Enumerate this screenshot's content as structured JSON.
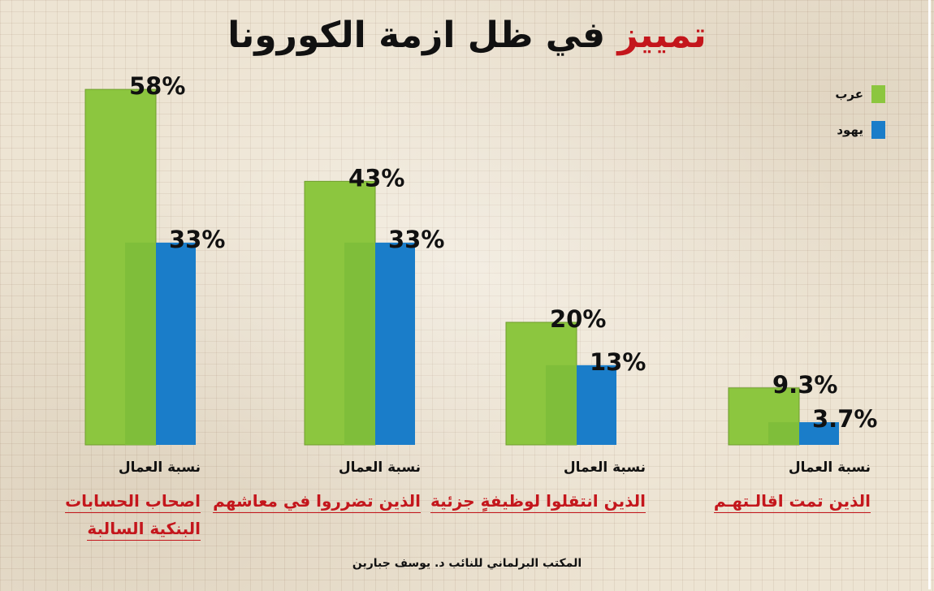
{
  "title": {
    "highlight": "تمييز",
    "rest": "في ظل ازمة الكورونا"
  },
  "legend": [
    {
      "label": "عرب",
      "color": "#8cc63f"
    },
    {
      "label": "يهود",
      "color": "#1a7dc9"
    }
  ],
  "chart_data": {
    "type": "bar",
    "categories": [
      "اصحاب الحسابات البنكية السالبة",
      "الذين تضرروا في معاشهم",
      "الذين انتقلوا لوظيفةٍ جزئية",
      "الذين تمت اقالـتهـم"
    ],
    "series": [
      {
        "name": "عرب",
        "values": [
          58,
          43,
          20,
          9.3
        ],
        "labels": [
          "58%",
          "43%",
          "20%",
          "9.3%"
        ],
        "color": "#8cc63f"
      },
      {
        "name": "يهود",
        "values": [
          33,
          33,
          13,
          3.7
        ],
        "labels": [
          "33%",
          "33%",
          "13%",
          "3.7%"
        ],
        "color": "#1a7dc9"
      }
    ],
    "ylim": [
      0,
      60
    ],
    "grid": false,
    "legend_position": "top-right"
  },
  "captions": [
    {
      "top": "نسبة العمال",
      "lines": [
        "اصحاب الحسابات",
        "البنكية السالبة"
      ]
    },
    {
      "top": "نسبة العمال",
      "lines": [
        "الذين تضرروا في معاشهم"
      ]
    },
    {
      "top": "نسبة العمال",
      "lines": [
        "الذين انتقلوا لوظيفةٍ جزئية"
      ]
    },
    {
      "top": "نسبة العمال",
      "lines": [
        "الذين تمت اقالـتهـم"
      ]
    }
  ],
  "footer": "المكتب البرلماني للنائب د. يوسف جبارين"
}
